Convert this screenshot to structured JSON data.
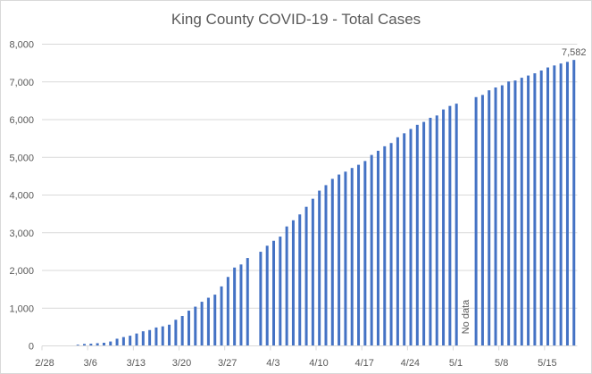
{
  "chart_data": {
    "type": "bar",
    "title": "King County COVID-19 - Total Cases",
    "xlabel": "",
    "ylabel": "",
    "ylim": [
      0,
      8000
    ],
    "yticks": [
      0,
      1000,
      2000,
      3000,
      4000,
      5000,
      6000,
      7000,
      8000
    ],
    "ytick_labels": [
      "0",
      "1,000",
      "2,000",
      "3,000",
      "4,000",
      "5,000",
      "6,000",
      "7,000",
      "8,000"
    ],
    "x_start": "2/28",
    "x_tick_labels": [
      "2/28",
      "3/6",
      "3/13",
      "3/20",
      "3/27",
      "4/3",
      "4/10",
      "4/17",
      "4/24",
      "5/1",
      "5/8",
      "5/15"
    ],
    "grid": true,
    "color": "#4472c4",
    "annotations": [
      {
        "text": "7,582",
        "target": "5/19"
      },
      {
        "text": "No data",
        "target": "5/2-5/3"
      }
    ],
    "categories": [
      "2/28",
      "2/29",
      "3/1",
      "3/2",
      "3/3",
      "3/4",
      "3/5",
      "3/6",
      "3/7",
      "3/8",
      "3/9",
      "3/10",
      "3/11",
      "3/12",
      "3/13",
      "3/14",
      "3/15",
      "3/16",
      "3/17",
      "3/18",
      "3/19",
      "3/20",
      "3/21",
      "3/22",
      "3/23",
      "3/24",
      "3/25",
      "3/26",
      "3/27",
      "3/28",
      "3/29",
      "3/30",
      "3/31",
      "4/1",
      "4/2",
      "4/3",
      "4/4",
      "4/5",
      "4/6",
      "4/7",
      "4/8",
      "4/9",
      "4/10",
      "4/11",
      "4/12",
      "4/13",
      "4/14",
      "4/15",
      "4/16",
      "4/17",
      "4/18",
      "4/19",
      "4/20",
      "4/21",
      "4/22",
      "4/23",
      "4/24",
      "4/25",
      "4/26",
      "4/27",
      "4/28",
      "4/29",
      "4/30",
      "5/1",
      "5/2",
      "5/3",
      "5/4",
      "5/5",
      "5/6",
      "5/7",
      "5/8",
      "5/9",
      "5/10",
      "5/11",
      "5/12",
      "5/13",
      "5/14",
      "5/15",
      "5/16",
      "5/17",
      "5/18",
      "5/19"
    ],
    "values": [
      null,
      null,
      null,
      null,
      null,
      31,
      51,
      58,
      71,
      83,
      116,
      190,
      234,
      270,
      328,
      387,
      420,
      488,
      518,
      562,
      693,
      793,
      934,
      1040,
      1170,
      1277,
      1359,
      1577,
      1828,
      2077,
      2159,
      2330,
      null,
      2496,
      2656,
      2787,
      2898,
      3167,
      3331,
      3486,
      3688,
      3902,
      4117,
      4262,
      4429,
      4543,
      4620,
      4717,
      4802,
      4902,
      5063,
      5174,
      5293,
      5379,
      5532,
      5637,
      5752,
      5862,
      5939,
      6048,
      6110,
      6269,
      6363,
      6423,
      null,
      null,
      6597,
      6654,
      6777,
      6852,
      6910,
      7011,
      7037,
      7110,
      7169,
      7228,
      7302,
      7383,
      7436,
      7488,
      7531,
      7582
    ]
  }
}
